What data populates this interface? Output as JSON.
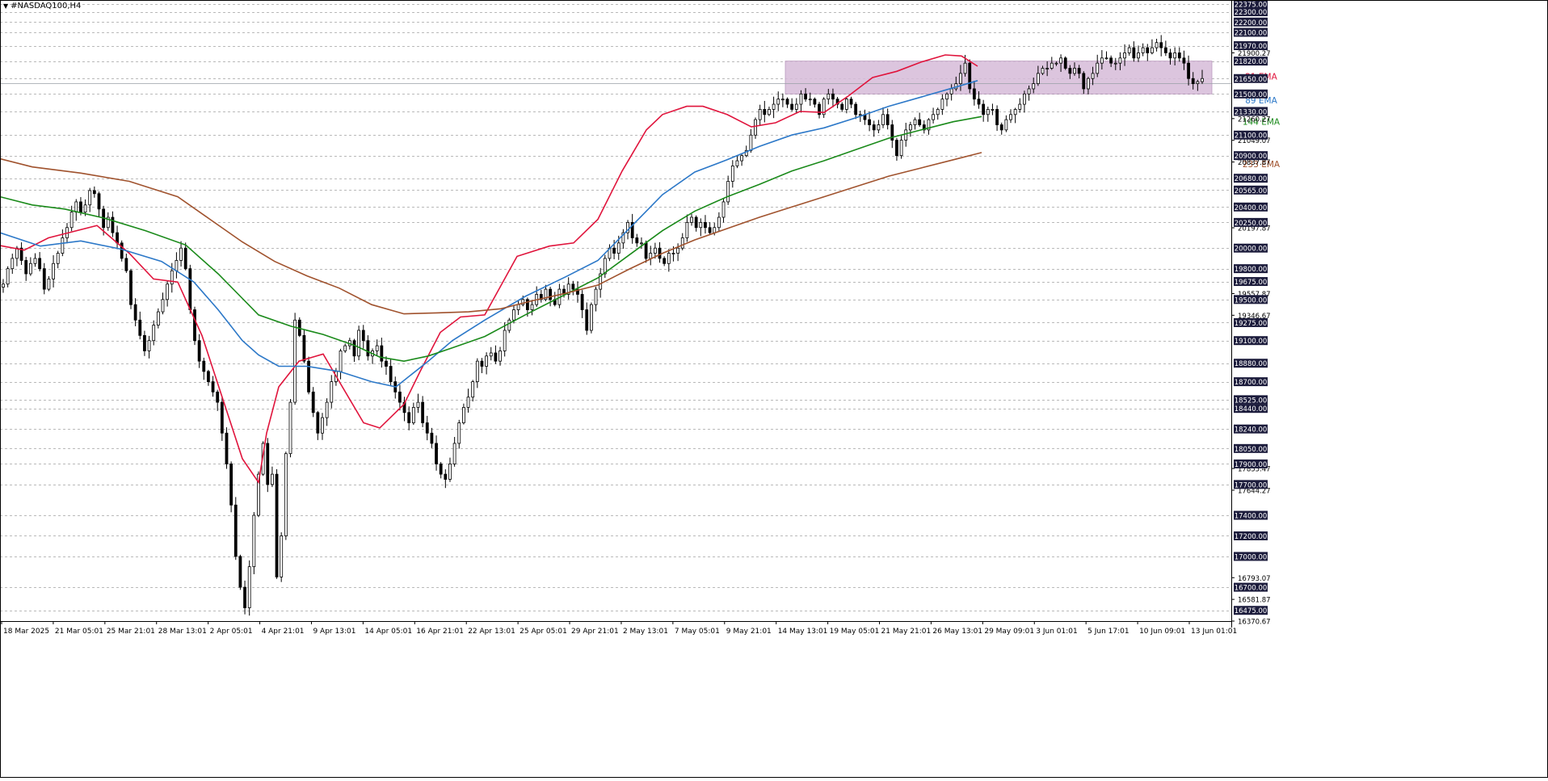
{
  "window": {
    "symbol": "#NASDAQ100,H4"
  },
  "colors": {
    "background": "#ffffff",
    "candle": "#000000",
    "grid": "#000000",
    "ema21": "#e0143c",
    "ema89": "#2c78c8",
    "ema144": "#1a8a1a",
    "ema233": "#a0522d",
    "zone_fill": "#d7bcd9",
    "zone_border": "#b08ab4",
    "price_box_bg": "#1c1c3c",
    "price_box_text": "#ffffff"
  },
  "chart_data": {
    "type": "candlestick",
    "instrument": "#NASDAQ100",
    "timeframe": "H4",
    "ylim": [
      16370.67,
      22375.0
    ],
    "price_levels": [
      "22375.00",
      "22300.00",
      "22200.00",
      "22100.00",
      "21970.00",
      "21820.00",
      "21650.00",
      "21500.00",
      "21330.00",
      "21100.00",
      "20900.00",
      "20680.00",
      "20565.00",
      "20400.00",
      "20250.00",
      "20000.00",
      "19800.00",
      "19675.00",
      "19500.00",
      "19275.00",
      "19100.00",
      "18880.00",
      "18700.00",
      "18525.00",
      "18440.00",
      "18240.00",
      "18050.00",
      "17900.00",
      "17700.00",
      "17400.00",
      "17200.00",
      "17000.00",
      "16700.00",
      "16475.00"
    ],
    "scale_labels": [
      "21900.27",
      "21260.27",
      "21049.07",
      "20837.87",
      "20197.87",
      "19557.87",
      "19346.67",
      "17855.47",
      "17644.27",
      "16793.07",
      "16581.87",
      "16370.67"
    ],
    "time_labels": [
      "18 Mar 2025",
      "21 Mar 05:01",
      "25 Mar 21:01",
      "28 Mar 13:01",
      "2 Apr 05:01",
      "4 Apr 21:01",
      "9 Apr 13:01",
      "14 Apr 05:01",
      "16 Apr 21:01",
      "22 Apr 13:01",
      "25 Apr 05:01",
      "29 Apr 21:01",
      "2 May 13:01",
      "7 May 05:01",
      "9 May 21:01",
      "14 May 13:01",
      "19 May 05:01",
      "21 May 21:01",
      "26 May 13:01",
      "29 May 09:01",
      "3 Jun 01:01",
      "5 Jun 17:01",
      "10 Jun 09:01",
      "13 Jun 01:01"
    ],
    "close_path": [
      19650,
      19800,
      19900,
      20000,
      19880,
      19750,
      19850,
      19900,
      19800,
      19600,
      19700,
      19850,
      19950,
      20100,
      20200,
      20350,
      20450,
      20350,
      20420,
      20560,
      20530,
      20380,
      20200,
      20300,
      20150,
      20050,
      19900,
      19780,
      19450,
      19300,
      19150,
      19000,
      19100,
      19250,
      19380,
      19500,
      19650,
      19780,
      19880,
      20000,
      19800,
      19400,
      19100,
      18900,
      18800,
      18700,
      18600,
      18500,
      18200,
      17900,
      17500,
      17000,
      16700,
      16500,
      16900,
      17400,
      17800,
      18100,
      17700,
      17800,
      16800,
      17200,
      18000,
      18500,
      19300,
      19150,
      18900,
      18600,
      18400,
      18200,
      18350,
      18500,
      18700,
      18800,
      19000,
      19050,
      19100,
      18950,
      19200,
      19100,
      18950,
      19000,
      19050,
      18900,
      18850,
      18700,
      18600,
      18500,
      18400,
      18300,
      18450,
      18500,
      18300,
      18200,
      18100,
      17900,
      17800,
      17750,
      17900,
      18100,
      18300,
      18450,
      18550,
      18700,
      18900,
      18850,
      18950,
      18980,
      18900,
      19000,
      19200,
      19300,
      19400,
      19450,
      19500,
      19400,
      19450,
      19550,
      19500,
      19600,
      19500,
      19450,
      19600,
      19550,
      19650,
      19600,
      19550,
      19400,
      19200,
      19450,
      19600,
      19750,
      19900,
      20000,
      19950,
      20050,
      20150,
      20250,
      20100,
      20050,
      20050,
      19900,
      19950,
      20000,
      19900,
      19850,
      19950,
      19950,
      20000,
      20100,
      20250,
      20300,
      20200,
      20250,
      20200,
      20150,
      20200,
      20300,
      20450,
      20650,
      20800,
      20850,
      20900,
      20950,
      21100,
      21250,
      21350,
      21300,
      21350,
      21400,
      21450,
      21450,
      21400,
      21350,
      21400,
      21500,
      21450,
      21450,
      21400,
      21300,
      21450,
      21500,
      21450,
      21400,
      21350,
      21450,
      21400,
      21300,
      21300,
      21250,
      21200,
      21150,
      21200,
      21300,
      21200,
      21050,
      20900,
      21050,
      21150,
      21200,
      21250,
      21200,
      21150,
      21250,
      21300,
      21350,
      21450,
      21500,
      21550,
      21600,
      21700,
      21800,
      21550,
      21450,
      21400,
      21300,
      21350,
      21350,
      21200,
      21150,
      21250,
      21300,
      21350,
      21400,
      21500,
      21550,
      21600,
      21700,
      21750,
      21750,
      21800,
      21800,
      21850,
      21750,
      21700,
      21750,
      21700,
      21550,
      21650,
      21700,
      21800,
      21850,
      21850,
      21800,
      21800,
      21850,
      21900,
      21950,
      21850,
      21900,
      21950,
      21900,
      21950,
      22000,
      21950,
      21900,
      21850,
      21900,
      21850,
      21800,
      21650,
      21600,
      21620,
      21650
    ],
    "series": [
      {
        "name": "21 EMA",
        "label_price": 21670,
        "points": [
          [
            0,
            20025
          ],
          [
            30,
            19980
          ],
          [
            60,
            20100
          ],
          [
            120,
            20220
          ],
          [
            160,
            19950
          ],
          [
            190,
            19700
          ],
          [
            220,
            19670
          ],
          [
            250,
            19150
          ],
          [
            275,
            18550
          ],
          [
            300,
            17950
          ],
          [
            320,
            17720
          ],
          [
            330,
            18200
          ],
          [
            345,
            18650
          ],
          [
            370,
            18900
          ],
          [
            400,
            18970
          ],
          [
            420,
            18700
          ],
          [
            450,
            18300
          ],
          [
            470,
            18250
          ],
          [
            500,
            18480
          ],
          [
            520,
            18800
          ],
          [
            545,
            19180
          ],
          [
            570,
            19330
          ],
          [
            600,
            19350
          ],
          [
            640,
            19920
          ],
          [
            680,
            20020
          ],
          [
            710,
            20050
          ],
          [
            740,
            20280
          ],
          [
            770,
            20750
          ],
          [
            800,
            21150
          ],
          [
            820,
            21300
          ],
          [
            850,
            21380
          ],
          [
            870,
            21380
          ],
          [
            900,
            21300
          ],
          [
            930,
            21180
          ],
          [
            960,
            21220
          ],
          [
            990,
            21330
          ],
          [
            1020,
            21320
          ],
          [
            1050,
            21480
          ],
          [
            1080,
            21660
          ],
          [
            1110,
            21720
          ],
          [
            1140,
            21810
          ],
          [
            1170,
            21880
          ],
          [
            1190,
            21870
          ],
          [
            1210,
            21770
          ]
        ]
      },
      {
        "name": "89 EMA",
        "label_price": 21440,
        "points": [
          [
            0,
            20150
          ],
          [
            50,
            20020
          ],
          [
            100,
            20070
          ],
          [
            150,
            19990
          ],
          [
            200,
            19870
          ],
          [
            240,
            19670
          ],
          [
            270,
            19400
          ],
          [
            300,
            19100
          ],
          [
            320,
            18960
          ],
          [
            345,
            18850
          ],
          [
            380,
            18850
          ],
          [
            420,
            18800
          ],
          [
            460,
            18700
          ],
          [
            490,
            18650
          ],
          [
            530,
            18900
          ],
          [
            560,
            19100
          ],
          [
            600,
            19300
          ],
          [
            650,
            19530
          ],
          [
            700,
            19720
          ],
          [
            740,
            19880
          ],
          [
            780,
            20200
          ],
          [
            820,
            20520
          ],
          [
            860,
            20740
          ],
          [
            900,
            20860
          ],
          [
            940,
            20990
          ],
          [
            980,
            21100
          ],
          [
            1020,
            21170
          ],
          [
            1060,
            21270
          ],
          [
            1100,
            21380
          ],
          [
            1140,
            21470
          ],
          [
            1180,
            21560
          ],
          [
            1210,
            21630
          ]
        ]
      },
      {
        "name": "144 EMA",
        "label_price": 21230,
        "points": [
          [
            0,
            20500
          ],
          [
            40,
            20420
          ],
          [
            80,
            20380
          ],
          [
            130,
            20290
          ],
          [
            180,
            20170
          ],
          [
            230,
            20030
          ],
          [
            270,
            19750
          ],
          [
            300,
            19510
          ],
          [
            320,
            19350
          ],
          [
            360,
            19240
          ],
          [
            400,
            19160
          ],
          [
            440,
            19050
          ],
          [
            470,
            18940
          ],
          [
            500,
            18900
          ],
          [
            530,
            18950
          ],
          [
            560,
            19030
          ],
          [
            600,
            19140
          ],
          [
            650,
            19350
          ],
          [
            700,
            19550
          ],
          [
            740,
            19710
          ],
          [
            780,
            19940
          ],
          [
            820,
            20170
          ],
          [
            860,
            20360
          ],
          [
            900,
            20500
          ],
          [
            940,
            20620
          ],
          [
            980,
            20750
          ],
          [
            1020,
            20850
          ],
          [
            1060,
            20960
          ],
          [
            1100,
            21070
          ],
          [
            1140,
            21150
          ],
          [
            1180,
            21230
          ],
          [
            1215,
            21280
          ]
        ]
      },
      {
        "name": "233 EMA",
        "label_price": 20820,
        "points": [
          [
            0,
            20870
          ],
          [
            40,
            20790
          ],
          [
            100,
            20730
          ],
          [
            160,
            20650
          ],
          [
            220,
            20500
          ],
          [
            260,
            20280
          ],
          [
            300,
            20060
          ],
          [
            340,
            19870
          ],
          [
            380,
            19730
          ],
          [
            420,
            19610
          ],
          [
            460,
            19450
          ],
          [
            500,
            19360
          ],
          [
            540,
            19370
          ],
          [
            580,
            19380
          ],
          [
            620,
            19410
          ],
          [
            660,
            19490
          ],
          [
            700,
            19560
          ],
          [
            740,
            19640
          ],
          [
            780,
            19800
          ],
          [
            820,
            19950
          ],
          [
            860,
            20080
          ],
          [
            900,
            20190
          ],
          [
            940,
            20300
          ],
          [
            980,
            20400
          ],
          [
            1020,
            20500
          ],
          [
            1060,
            20600
          ],
          [
            1100,
            20700
          ],
          [
            1140,
            20780
          ],
          [
            1180,
            20860
          ],
          [
            1215,
            20930
          ]
        ]
      }
    ],
    "zone": {
      "from_price": 21500,
      "to_price": 21820
    },
    "current_price": 21600,
    "grid": "dashed horizontal",
    "legend": "inline right"
  }
}
